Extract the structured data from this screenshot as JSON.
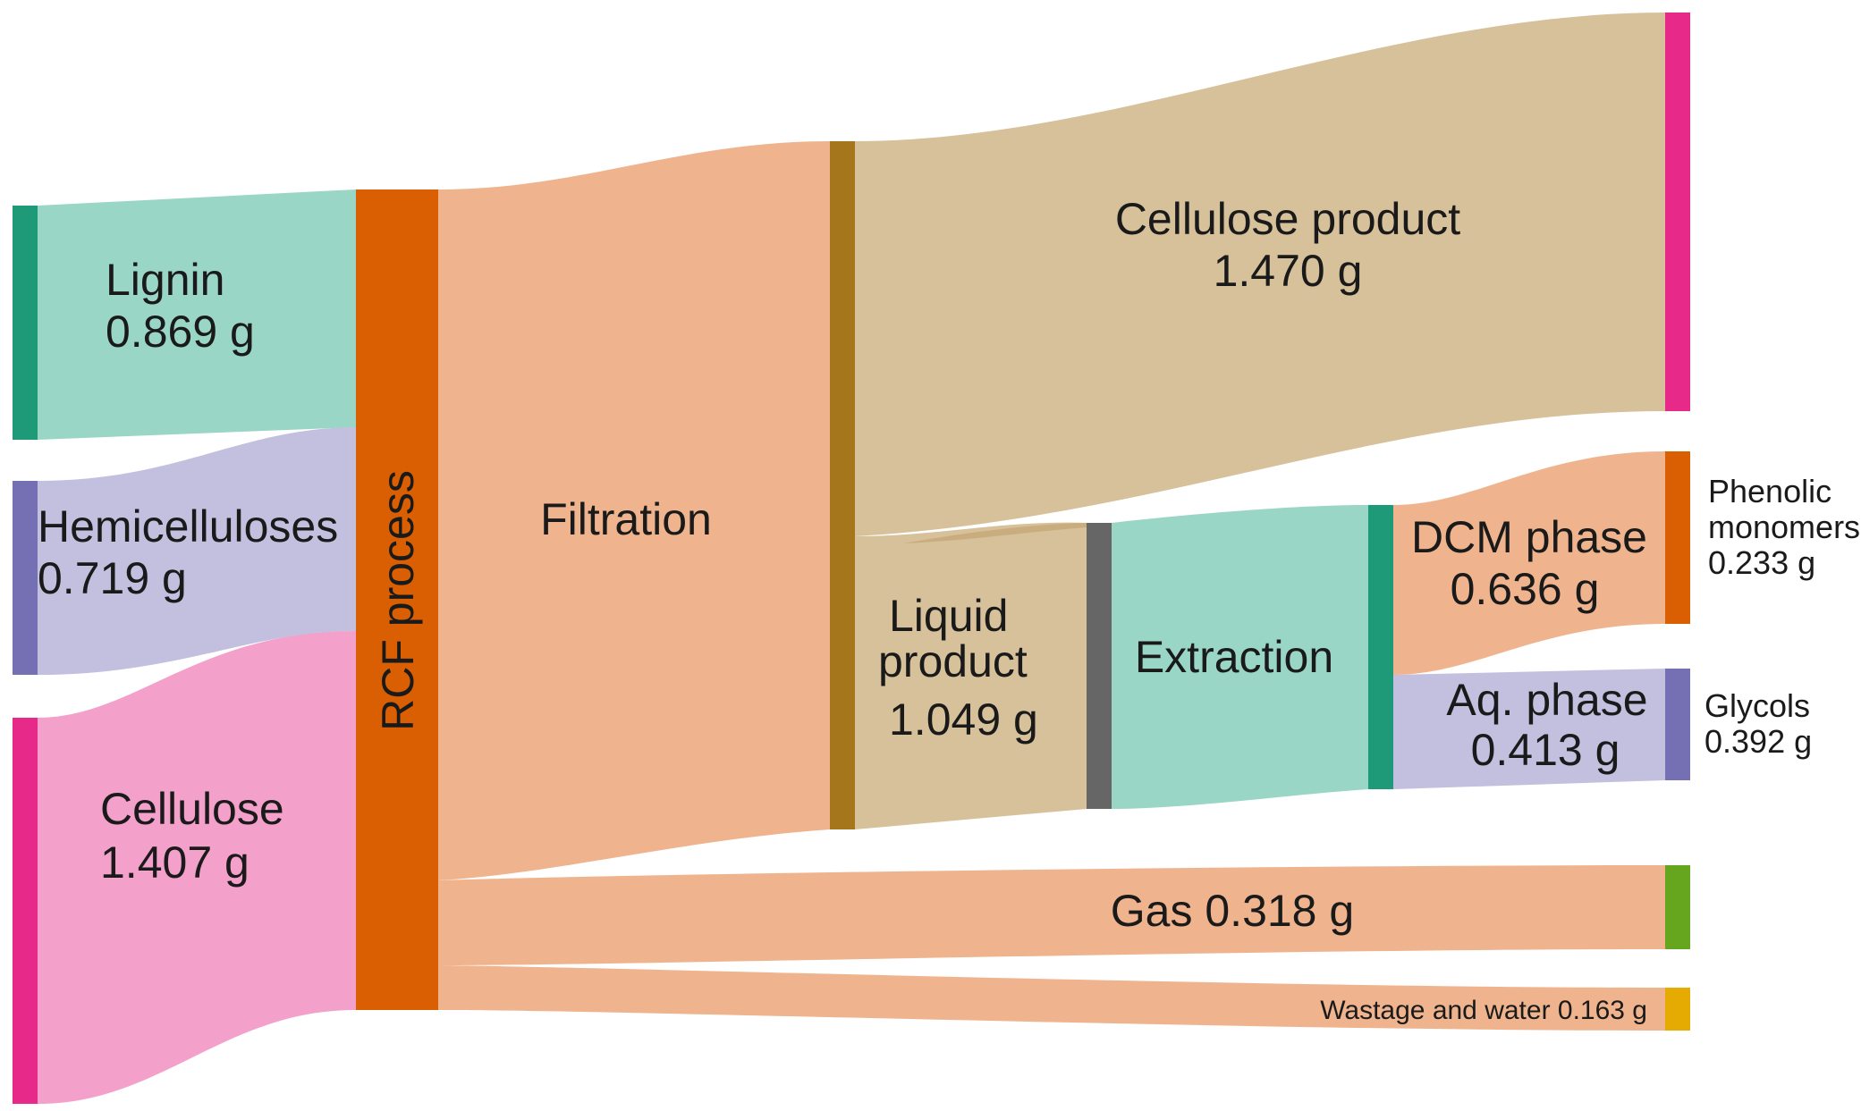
{
  "colors": {
    "lignin_bar": "#1e9a78",
    "lignin_flow": "#9ad6c5",
    "hemi_bar": "#7570b3",
    "hemi_flow": "#c3bfdf",
    "cellulose_bar": "#e7298a",
    "cellulose_flow": "#f3a0ca",
    "rcf_bar": "#d95f02",
    "orange_flow": "#efb48e",
    "filtration_bar": "#a6761d",
    "tan_flow": "#d6c19a",
    "extraction_bar": "#666666",
    "extraction_flow": "#9ad6c5",
    "gas_bar": "#66a61e",
    "wastage_bar": "#e6ab02",
    "aq_bar": "#7570b3",
    "aq_flow": "#c3bfdf"
  },
  "nodes": {
    "lignin": {
      "name": "Lignin",
      "value": "0.869 g"
    },
    "hemicelluloses": {
      "name": "Hemicelluloses",
      "value": "0.719 g"
    },
    "cellulose": {
      "name": "Cellulose",
      "value": "1.407 g"
    },
    "rcf": {
      "name": "RCF process"
    },
    "filtration": {
      "name": "Filtration"
    },
    "cellulose_product": {
      "name": "Cellulose product",
      "value": "1.470 g"
    },
    "liquid_product": {
      "line1": "Liquid",
      "line2": "product",
      "value": "1.049 g"
    },
    "extraction": {
      "name": "Extraction"
    },
    "dcm_phase": {
      "name": "DCM phase",
      "value": "0.636 g"
    },
    "aq_phase": {
      "name": "Aq. phase",
      "value": "0.413 g"
    },
    "phenolic": {
      "line1": "Phenolic",
      "line2": "monomers",
      "value": "0.233 g"
    },
    "glycols": {
      "name": "Glycols",
      "value": "0.392 g"
    },
    "gas": {
      "label": "Gas 0.318 g"
    },
    "wastage": {
      "label": "Wastage and water 0.163 g"
    }
  }
}
